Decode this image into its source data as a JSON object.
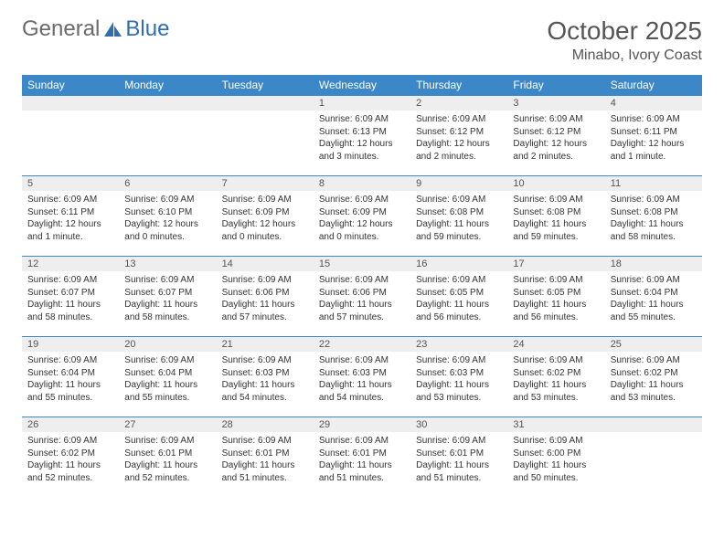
{
  "colors": {
    "header_bg": "#3b87c8",
    "header_text": "#ffffff",
    "daynum_bg": "#eeeeee",
    "border": "#3b87c8",
    "text": "#333333",
    "title": "#555555"
  },
  "logo": {
    "part1": "General",
    "part2": "Blue"
  },
  "title": "October 2025",
  "location": "Minabo, Ivory Coast",
  "day_headers": [
    "Sunday",
    "Monday",
    "Tuesday",
    "Wednesday",
    "Thursday",
    "Friday",
    "Saturday"
  ],
  "weeks": [
    [
      null,
      null,
      null,
      {
        "num": "1",
        "sunrise": "Sunrise: 6:09 AM",
        "sunset": "Sunset: 6:13 PM",
        "daylight": "Daylight: 12 hours and 3 minutes."
      },
      {
        "num": "2",
        "sunrise": "Sunrise: 6:09 AM",
        "sunset": "Sunset: 6:12 PM",
        "daylight": "Daylight: 12 hours and 2 minutes."
      },
      {
        "num": "3",
        "sunrise": "Sunrise: 6:09 AM",
        "sunset": "Sunset: 6:12 PM",
        "daylight": "Daylight: 12 hours and 2 minutes."
      },
      {
        "num": "4",
        "sunrise": "Sunrise: 6:09 AM",
        "sunset": "Sunset: 6:11 PM",
        "daylight": "Daylight: 12 hours and 1 minute."
      }
    ],
    [
      {
        "num": "5",
        "sunrise": "Sunrise: 6:09 AM",
        "sunset": "Sunset: 6:11 PM",
        "daylight": "Daylight: 12 hours and 1 minute."
      },
      {
        "num": "6",
        "sunrise": "Sunrise: 6:09 AM",
        "sunset": "Sunset: 6:10 PM",
        "daylight": "Daylight: 12 hours and 0 minutes."
      },
      {
        "num": "7",
        "sunrise": "Sunrise: 6:09 AM",
        "sunset": "Sunset: 6:09 PM",
        "daylight": "Daylight: 12 hours and 0 minutes."
      },
      {
        "num": "8",
        "sunrise": "Sunrise: 6:09 AM",
        "sunset": "Sunset: 6:09 PM",
        "daylight": "Daylight: 12 hours and 0 minutes."
      },
      {
        "num": "9",
        "sunrise": "Sunrise: 6:09 AM",
        "sunset": "Sunset: 6:08 PM",
        "daylight": "Daylight: 11 hours and 59 minutes."
      },
      {
        "num": "10",
        "sunrise": "Sunrise: 6:09 AM",
        "sunset": "Sunset: 6:08 PM",
        "daylight": "Daylight: 11 hours and 59 minutes."
      },
      {
        "num": "11",
        "sunrise": "Sunrise: 6:09 AM",
        "sunset": "Sunset: 6:08 PM",
        "daylight": "Daylight: 11 hours and 58 minutes."
      }
    ],
    [
      {
        "num": "12",
        "sunrise": "Sunrise: 6:09 AM",
        "sunset": "Sunset: 6:07 PM",
        "daylight": "Daylight: 11 hours and 58 minutes."
      },
      {
        "num": "13",
        "sunrise": "Sunrise: 6:09 AM",
        "sunset": "Sunset: 6:07 PM",
        "daylight": "Daylight: 11 hours and 58 minutes."
      },
      {
        "num": "14",
        "sunrise": "Sunrise: 6:09 AM",
        "sunset": "Sunset: 6:06 PM",
        "daylight": "Daylight: 11 hours and 57 minutes."
      },
      {
        "num": "15",
        "sunrise": "Sunrise: 6:09 AM",
        "sunset": "Sunset: 6:06 PM",
        "daylight": "Daylight: 11 hours and 57 minutes."
      },
      {
        "num": "16",
        "sunrise": "Sunrise: 6:09 AM",
        "sunset": "Sunset: 6:05 PM",
        "daylight": "Daylight: 11 hours and 56 minutes."
      },
      {
        "num": "17",
        "sunrise": "Sunrise: 6:09 AM",
        "sunset": "Sunset: 6:05 PM",
        "daylight": "Daylight: 11 hours and 56 minutes."
      },
      {
        "num": "18",
        "sunrise": "Sunrise: 6:09 AM",
        "sunset": "Sunset: 6:04 PM",
        "daylight": "Daylight: 11 hours and 55 minutes."
      }
    ],
    [
      {
        "num": "19",
        "sunrise": "Sunrise: 6:09 AM",
        "sunset": "Sunset: 6:04 PM",
        "daylight": "Daylight: 11 hours and 55 minutes."
      },
      {
        "num": "20",
        "sunrise": "Sunrise: 6:09 AM",
        "sunset": "Sunset: 6:04 PM",
        "daylight": "Daylight: 11 hours and 55 minutes."
      },
      {
        "num": "21",
        "sunrise": "Sunrise: 6:09 AM",
        "sunset": "Sunset: 6:03 PM",
        "daylight": "Daylight: 11 hours and 54 minutes."
      },
      {
        "num": "22",
        "sunrise": "Sunrise: 6:09 AM",
        "sunset": "Sunset: 6:03 PM",
        "daylight": "Daylight: 11 hours and 54 minutes."
      },
      {
        "num": "23",
        "sunrise": "Sunrise: 6:09 AM",
        "sunset": "Sunset: 6:03 PM",
        "daylight": "Daylight: 11 hours and 53 minutes."
      },
      {
        "num": "24",
        "sunrise": "Sunrise: 6:09 AM",
        "sunset": "Sunset: 6:02 PM",
        "daylight": "Daylight: 11 hours and 53 minutes."
      },
      {
        "num": "25",
        "sunrise": "Sunrise: 6:09 AM",
        "sunset": "Sunset: 6:02 PM",
        "daylight": "Daylight: 11 hours and 53 minutes."
      }
    ],
    [
      {
        "num": "26",
        "sunrise": "Sunrise: 6:09 AM",
        "sunset": "Sunset: 6:02 PM",
        "daylight": "Daylight: 11 hours and 52 minutes."
      },
      {
        "num": "27",
        "sunrise": "Sunrise: 6:09 AM",
        "sunset": "Sunset: 6:01 PM",
        "daylight": "Daylight: 11 hours and 52 minutes."
      },
      {
        "num": "28",
        "sunrise": "Sunrise: 6:09 AM",
        "sunset": "Sunset: 6:01 PM",
        "daylight": "Daylight: 11 hours and 51 minutes."
      },
      {
        "num": "29",
        "sunrise": "Sunrise: 6:09 AM",
        "sunset": "Sunset: 6:01 PM",
        "daylight": "Daylight: 11 hours and 51 minutes."
      },
      {
        "num": "30",
        "sunrise": "Sunrise: 6:09 AM",
        "sunset": "Sunset: 6:01 PM",
        "daylight": "Daylight: 11 hours and 51 minutes."
      },
      {
        "num": "31",
        "sunrise": "Sunrise: 6:09 AM",
        "sunset": "Sunset: 6:00 PM",
        "daylight": "Daylight: 11 hours and 50 minutes."
      },
      null
    ]
  ]
}
